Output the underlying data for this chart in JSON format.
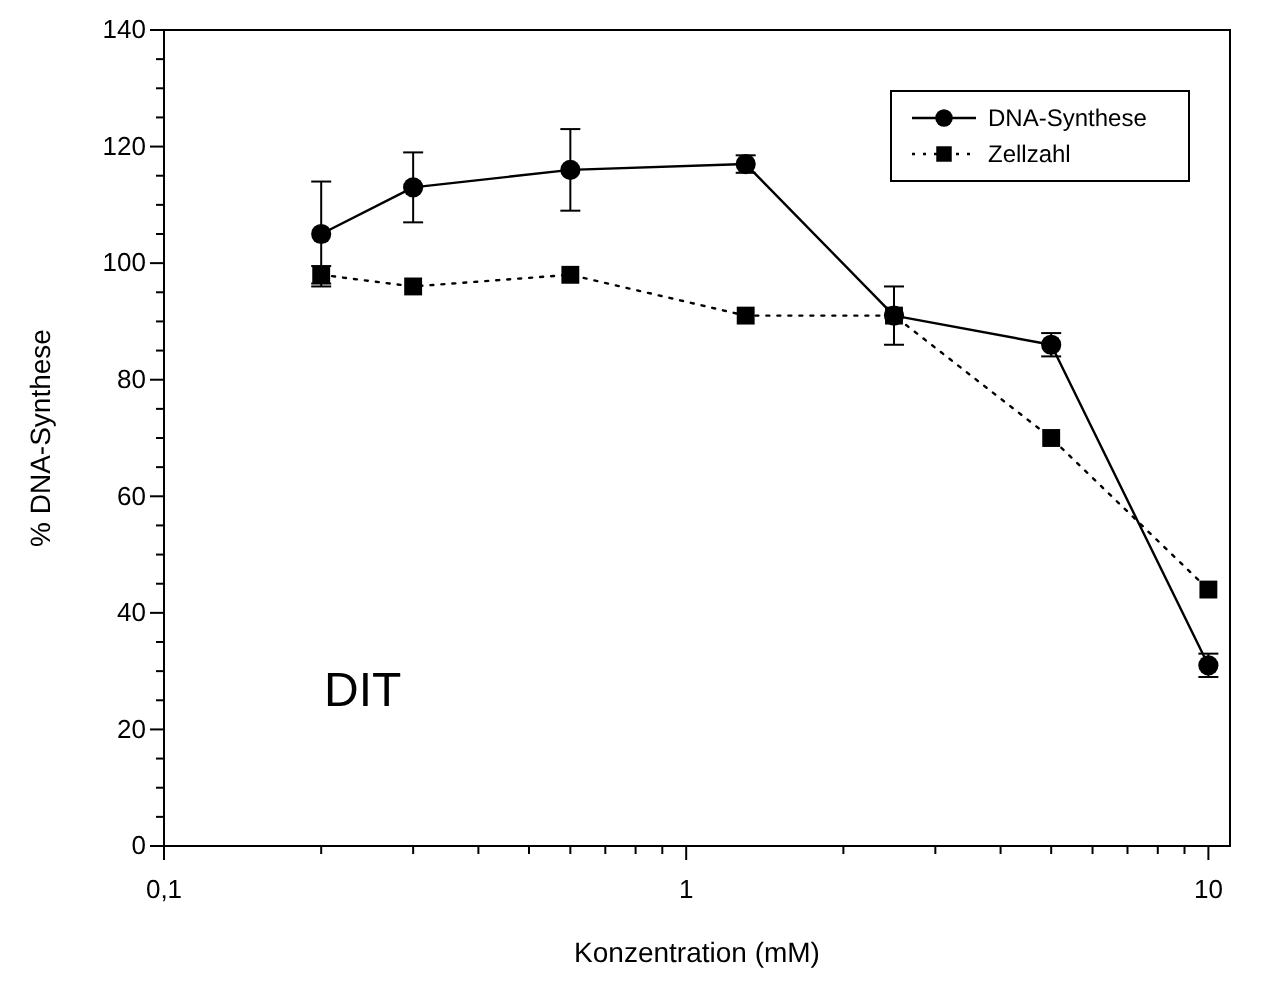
{
  "chart_data": {
    "type": "line",
    "xlabel": "Konzentration (mM)",
    "ylabel": "% DNA-Synthese",
    "log": "x",
    "legend": "top right",
    "grid": false,
    "x": [
      0.2,
      0.3,
      0.6,
      1.3,
      2.5,
      5,
      10
    ],
    "xlim": [
      0.1,
      11
    ],
    "xticks": [
      {
        "value": 0.1,
        "label": "0,1"
      },
      {
        "value": 0.2,
        "label": null
      },
      {
        "value": 0.3,
        "label": null
      },
      {
        "value": 0.4,
        "label": null
      },
      {
        "value": 0.5,
        "label": null
      },
      {
        "value": 0.6,
        "label": null
      },
      {
        "value": 0.7,
        "label": null
      },
      {
        "value": 0.8,
        "label": null
      },
      {
        "value": 0.9,
        "label": null
      },
      1,
      {
        "value": 2,
        "label": null
      },
      {
        "value": 3,
        "label": null
      },
      {
        "value": 4,
        "label": null
      },
      {
        "value": 5,
        "label": null
      },
      {
        "value": 6,
        "label": null
      },
      {
        "value": 7,
        "label": null
      },
      {
        "value": 8,
        "label": null
      },
      {
        "value": 9,
        "label": null
      },
      10
    ],
    "ylim": [
      0,
      140
    ],
    "yticks": [
      0,
      {
        "value": 5,
        "label": null
      },
      {
        "value": 10,
        "label": null
      },
      {
        "value": 15,
        "label": null
      },
      20,
      {
        "value": 25,
        "label": null
      },
      {
        "value": 30,
        "label": null
      },
      {
        "value": 35,
        "label": null
      },
      40,
      {
        "value": 45,
        "label": null
      },
      {
        "value": 50,
        "label": null
      },
      {
        "value": 55,
        "label": null
      },
      60,
      {
        "value": 65,
        "label": null
      },
      {
        "value": 70,
        "label": null
      },
      {
        "value": 75,
        "label": null
      },
      80,
      {
        "value": 85,
        "label": null
      },
      {
        "value": 90,
        "label": null
      },
      {
        "value": 95,
        "label": null
      },
      100,
      {
        "value": 105,
        "label": null
      },
      {
        "value": 110,
        "label": null
      },
      {
        "value": 115,
        "label": null
      },
      120,
      {
        "value": 125,
        "label": null
      },
      {
        "value": 130,
        "label": null
      },
      {
        "value": 135,
        "label": null
      },
      140
    ],
    "series": [
      {
        "name": "DNA-Synthese",
        "color": "#000000",
        "marker": "circle",
        "line_style": "solid",
        "values": [
          105,
          113,
          116,
          117,
          91,
          86,
          31
        ],
        "errors": [
          9,
          6,
          7,
          1.5,
          5,
          2,
          2
        ]
      },
      {
        "name": "Zellzahl",
        "color": "#000000",
        "marker": "square",
        "line_style": "dotted",
        "values": [
          98,
          96,
          98,
          91,
          91,
          70,
          44
        ],
        "errors": [
          1.5,
          null,
          null,
          null,
          null,
          null,
          null
        ]
      }
    ],
    "annotations": [
      "DIT"
    ]
  }
}
